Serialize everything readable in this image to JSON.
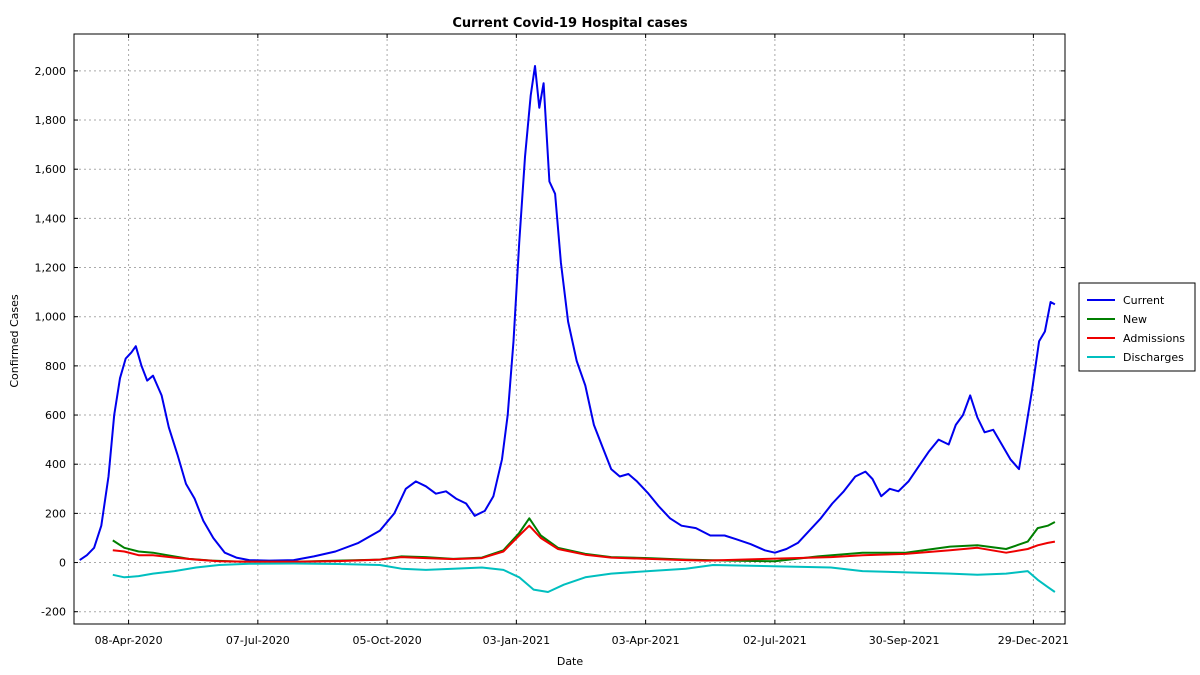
{
  "chart_data": {
    "type": "line",
    "title": "Current Covid-19 Hospital cases",
    "xlabel": "Date",
    "ylabel": "Confirmed Cases",
    "x_range": [
      "2020-03-01",
      "2022-01-20"
    ],
    "ylim": [
      -250,
      2150
    ],
    "y_ticks": [
      -200,
      0,
      200,
      400,
      600,
      800,
      1000,
      1200,
      1400,
      1600,
      1800,
      2000
    ],
    "y_tick_labels": [
      "-200",
      "0",
      "200",
      "400",
      "600",
      "800",
      "1,000",
      "1,200",
      "1,400",
      "1,600",
      "1,800",
      "2,000"
    ],
    "x_ticks": [
      "2020-04-08",
      "2020-07-07",
      "2020-10-05",
      "2021-01-03",
      "2021-04-03",
      "2021-07-02",
      "2021-09-30",
      "2021-12-29"
    ],
    "x_tick_labels": [
      "08-Apr-2020",
      "07-Jul-2020",
      "05-Oct-2020",
      "03-Jan-2021",
      "03-Apr-2021",
      "02-Jul-2021",
      "30-Sep-2021",
      "29-Dec-2021"
    ],
    "grid": true,
    "legend_position": "right",
    "series": [
      {
        "name": "Current",
        "color": "#0000ee",
        "points": [
          [
            "2020-03-05",
            10
          ],
          [
            "2020-03-10",
            30
          ],
          [
            "2020-03-15",
            60
          ],
          [
            "2020-03-20",
            150
          ],
          [
            "2020-03-25",
            350
          ],
          [
            "2020-03-29",
            600
          ],
          [
            "2020-04-02",
            750
          ],
          [
            "2020-04-06",
            830
          ],
          [
            "2020-04-10",
            855
          ],
          [
            "2020-04-13",
            880
          ],
          [
            "2020-04-17",
            800
          ],
          [
            "2020-04-21",
            740
          ],
          [
            "2020-04-25",
            760
          ],
          [
            "2020-05-01",
            680
          ],
          [
            "2020-05-06",
            550
          ],
          [
            "2020-05-12",
            440
          ],
          [
            "2020-05-18",
            320
          ],
          [
            "2020-05-24",
            260
          ],
          [
            "2020-05-30",
            170
          ],
          [
            "2020-06-06",
            100
          ],
          [
            "2020-06-14",
            40
          ],
          [
            "2020-06-22",
            20
          ],
          [
            "2020-07-01",
            10
          ],
          [
            "2020-07-15",
            8
          ],
          [
            "2020-08-01",
            10
          ],
          [
            "2020-08-15",
            25
          ],
          [
            "2020-08-30",
            45
          ],
          [
            "2020-09-15",
            80
          ],
          [
            "2020-09-30",
            130
          ],
          [
            "2020-10-10",
            200
          ],
          [
            "2020-10-18",
            300
          ],
          [
            "2020-10-25",
            330
          ],
          [
            "2020-11-01",
            310
          ],
          [
            "2020-11-08",
            280
          ],
          [
            "2020-11-15",
            290
          ],
          [
            "2020-11-22",
            260
          ],
          [
            "2020-11-29",
            240
          ],
          [
            "2020-12-05",
            190
          ],
          [
            "2020-12-12",
            210
          ],
          [
            "2020-12-18",
            270
          ],
          [
            "2020-12-24",
            420
          ],
          [
            "2020-12-28",
            600
          ],
          [
            "2021-01-01",
            900
          ],
          [
            "2021-01-05",
            1300
          ],
          [
            "2021-01-09",
            1650
          ],
          [
            "2021-01-13",
            1900
          ],
          [
            "2021-01-16",
            2020
          ],
          [
            "2021-01-19",
            1850
          ],
          [
            "2021-01-22",
            1950
          ],
          [
            "2021-01-26",
            1550
          ],
          [
            "2021-01-30",
            1500
          ],
          [
            "2021-02-03",
            1220
          ],
          [
            "2021-02-08",
            980
          ],
          [
            "2021-02-14",
            820
          ],
          [
            "2021-02-20",
            720
          ],
          [
            "2021-02-26",
            560
          ],
          [
            "2021-03-04",
            470
          ],
          [
            "2021-03-10",
            380
          ],
          [
            "2021-03-16",
            350
          ],
          [
            "2021-03-22",
            360
          ],
          [
            "2021-03-28",
            330
          ],
          [
            "2021-04-05",
            280
          ],
          [
            "2021-04-12",
            230
          ],
          [
            "2021-04-20",
            180
          ],
          [
            "2021-04-28",
            150
          ],
          [
            "2021-05-08",
            140
          ],
          [
            "2021-05-18",
            110
          ],
          [
            "2021-05-28",
            110
          ],
          [
            "2021-06-05",
            95
          ],
          [
            "2021-06-15",
            75
          ],
          [
            "2021-06-25",
            50
          ],
          [
            "2021-07-02",
            40
          ],
          [
            "2021-07-10",
            55
          ],
          [
            "2021-07-18",
            80
          ],
          [
            "2021-07-26",
            130
          ],
          [
            "2021-08-03",
            180
          ],
          [
            "2021-08-11",
            240
          ],
          [
            "2021-08-19",
            290
          ],
          [
            "2021-08-27",
            350
          ],
          [
            "2021-09-03",
            370
          ],
          [
            "2021-09-08",
            340
          ],
          [
            "2021-09-14",
            270
          ],
          [
            "2021-09-20",
            300
          ],
          [
            "2021-09-26",
            290
          ],
          [
            "2021-10-03",
            330
          ],
          [
            "2021-10-10",
            390
          ],
          [
            "2021-10-17",
            450
          ],
          [
            "2021-10-24",
            500
          ],
          [
            "2021-10-31",
            480
          ],
          [
            "2021-11-05",
            560
          ],
          [
            "2021-11-10",
            600
          ],
          [
            "2021-11-15",
            680
          ],
          [
            "2021-11-20",
            590
          ],
          [
            "2021-11-25",
            530
          ],
          [
            "2021-12-01",
            540
          ],
          [
            "2021-12-07",
            480
          ],
          [
            "2021-12-13",
            420
          ],
          [
            "2021-12-19",
            380
          ],
          [
            "2021-12-23",
            520
          ],
          [
            "2021-12-28",
            700
          ],
          [
            "2022-01-02",
            900
          ],
          [
            "2022-01-06",
            940
          ],
          [
            "2022-01-10",
            1060
          ],
          [
            "2022-01-13",
            1050
          ]
        ]
      },
      {
        "name": "New",
        "color": "#007f00",
        "points": [
          [
            "2020-03-28",
            90
          ],
          [
            "2020-04-05",
            60
          ],
          [
            "2020-04-15",
            45
          ],
          [
            "2020-04-25",
            40
          ],
          [
            "2020-05-05",
            30
          ],
          [
            "2020-05-20",
            15
          ],
          [
            "2020-06-05",
            8
          ],
          [
            "2020-06-25",
            4
          ],
          [
            "2020-08-01",
            3
          ],
          [
            "2020-09-01",
            8
          ],
          [
            "2020-09-30",
            12
          ],
          [
            "2020-10-15",
            25
          ],
          [
            "2020-11-01",
            22
          ],
          [
            "2020-11-20",
            15
          ],
          [
            "2020-12-10",
            20
          ],
          [
            "2020-12-25",
            50
          ],
          [
            "2021-01-05",
            120
          ],
          [
            "2021-01-12",
            180
          ],
          [
            "2021-01-20",
            110
          ],
          [
            "2021-02-01",
            60
          ],
          [
            "2021-02-20",
            35
          ],
          [
            "2021-03-10",
            22
          ],
          [
            "2021-04-05",
            18
          ],
          [
            "2021-05-01",
            12
          ],
          [
            "2021-06-01",
            8
          ],
          [
            "2021-07-02",
            5
          ],
          [
            "2021-08-01",
            25
          ],
          [
            "2021-09-01",
            40
          ],
          [
            "2021-10-01",
            40
          ],
          [
            "2021-11-01",
            65
          ],
          [
            "2021-11-20",
            70
          ],
          [
            "2021-12-10",
            55
          ],
          [
            "2021-12-25",
            85
          ],
          [
            "2022-01-01",
            140
          ],
          [
            "2022-01-08",
            150
          ],
          [
            "2022-01-13",
            165
          ]
        ]
      },
      {
        "name": "Admissions",
        "color": "#ee0000",
        "points": [
          [
            "2020-03-28",
            50
          ],
          [
            "2020-04-05",
            45
          ],
          [
            "2020-04-15",
            30
          ],
          [
            "2020-04-25",
            30
          ],
          [
            "2020-05-10",
            20
          ],
          [
            "2020-05-25",
            12
          ],
          [
            "2020-06-10",
            5
          ],
          [
            "2020-07-01",
            3
          ],
          [
            "2020-08-01",
            3
          ],
          [
            "2020-09-01",
            6
          ],
          [
            "2020-09-30",
            12
          ],
          [
            "2020-10-15",
            22
          ],
          [
            "2020-11-01",
            18
          ],
          [
            "2020-11-20",
            14
          ],
          [
            "2020-12-10",
            18
          ],
          [
            "2020-12-25",
            45
          ],
          [
            "2021-01-05",
            110
          ],
          [
            "2021-01-12",
            150
          ],
          [
            "2021-01-20",
            100
          ],
          [
            "2021-02-01",
            55
          ],
          [
            "2021-02-20",
            32
          ],
          [
            "2021-03-10",
            20
          ],
          [
            "2021-04-05",
            15
          ],
          [
            "2021-05-01",
            10
          ],
          [
            "2021-05-15",
            8
          ],
          [
            "2021-08-10",
            22
          ],
          [
            "2021-09-01",
            30
          ],
          [
            "2021-10-01",
            35
          ],
          [
            "2021-11-01",
            50
          ],
          [
            "2021-11-20",
            60
          ],
          [
            "2021-12-10",
            40
          ],
          [
            "2021-12-25",
            55
          ],
          [
            "2022-01-01",
            70
          ],
          [
            "2022-01-08",
            80
          ],
          [
            "2022-01-13",
            85
          ]
        ]
      },
      {
        "name": "Discharges",
        "color": "#00bfbf",
        "points": [
          [
            "2020-03-28",
            -50
          ],
          [
            "2020-04-05",
            -60
          ],
          [
            "2020-04-15",
            -55
          ],
          [
            "2020-04-25",
            -45
          ],
          [
            "2020-05-10",
            -35
          ],
          [
            "2020-05-25",
            -20
          ],
          [
            "2020-06-10",
            -10
          ],
          [
            "2020-07-01",
            -5
          ],
          [
            "2020-08-01",
            -4
          ],
          [
            "2020-09-01",
            -6
          ],
          [
            "2020-09-30",
            -10
          ],
          [
            "2020-10-15",
            -25
          ],
          [
            "2020-11-01",
            -30
          ],
          [
            "2020-11-20",
            -25
          ],
          [
            "2020-12-10",
            -20
          ],
          [
            "2020-12-25",
            -30
          ],
          [
            "2021-01-05",
            -60
          ],
          [
            "2021-01-15",
            -110
          ],
          [
            "2021-01-25",
            -120
          ],
          [
            "2021-02-05",
            -90
          ],
          [
            "2021-02-20",
            -60
          ],
          [
            "2021-03-10",
            -45
          ],
          [
            "2021-04-05",
            -35
          ],
          [
            "2021-05-01",
            -25
          ],
          [
            "2021-05-20",
            -10
          ],
          [
            "2021-08-10",
            -20
          ],
          [
            "2021-09-01",
            -35
          ],
          [
            "2021-10-01",
            -40
          ],
          [
            "2021-11-01",
            -45
          ],
          [
            "2021-11-20",
            -50
          ],
          [
            "2021-12-10",
            -45
          ],
          [
            "2021-12-25",
            -35
          ],
          [
            "2022-01-01",
            -70
          ],
          [
            "2022-01-08",
            -100
          ],
          [
            "2022-01-13",
            -120
          ]
        ]
      }
    ]
  }
}
